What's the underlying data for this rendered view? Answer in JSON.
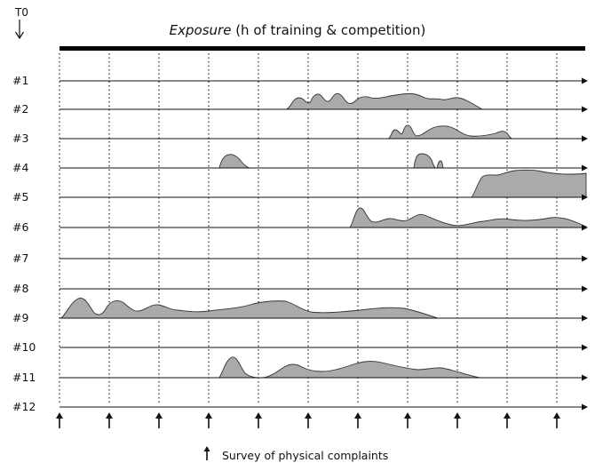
{
  "header": {
    "t0_label": "T0",
    "title_italic": "Exposure",
    "title_rest": " (h of training & competition)"
  },
  "participants": [
    "#1",
    "#2",
    "#3",
    "#4",
    "#5",
    "#6",
    "#7",
    "#8",
    "#9",
    "#10",
    "#11",
    "#12"
  ],
  "survey_count": 11,
  "legend": {
    "arrow_glyph": "↑",
    "text": "Survey of physical complaints"
  },
  "colors": {
    "fill": "#aaaaaa",
    "line": "#111111",
    "header_bar": "#000000"
  }
}
